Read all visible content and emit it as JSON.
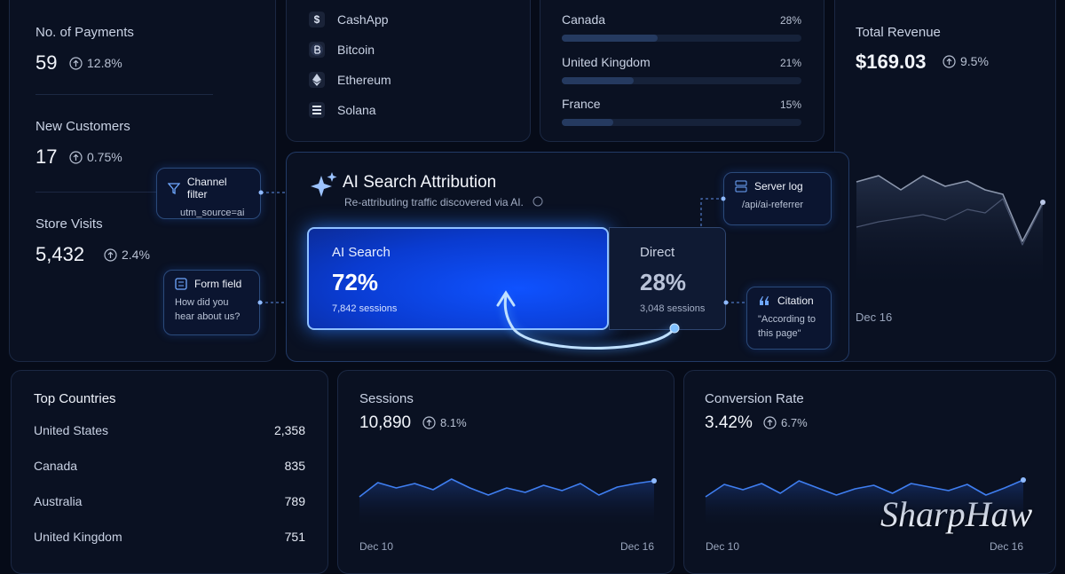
{
  "metrics": [
    {
      "label": "No. of Payments",
      "value": "59",
      "change": "12.8%"
    },
    {
      "label": "New Customers",
      "value": "17",
      "change": "0.75%"
    },
    {
      "label": "Store Visits",
      "value": "5,432",
      "change": "2.4%"
    }
  ],
  "payment_methods": [
    "CashApp",
    "Bitcoin",
    "Ethereum",
    "Solana"
  ],
  "country_shares": [
    {
      "name": "Canada",
      "share": 28,
      "label": "28%"
    },
    {
      "name": "United Kingdom",
      "share": 21,
      "label": "21%"
    },
    {
      "name": "France",
      "share": 15,
      "label": "15%"
    }
  ],
  "revenue": {
    "label": "Total Revenue",
    "value": "$169.03",
    "change": "9.5%",
    "date": "Dec 16"
  },
  "attribution": {
    "title": "AI Search Attribution",
    "subtitle": "Re-attributing traffic discovered via AI.",
    "ai": {
      "label": "AI Search",
      "share": 72,
      "share_label": "72%",
      "sessions": "7,842 sessions"
    },
    "direct": {
      "label": "Direct",
      "share": 28,
      "share_label": "28%",
      "sessions": "3,048 sessions"
    }
  },
  "callouts": [
    {
      "title": "Channel filter",
      "text": "utm_source=ai"
    },
    {
      "title": "Form field",
      "text": "How did you hear about us?"
    },
    {
      "title": "Server log",
      "text": "/api/ai-referrer"
    },
    {
      "title": "Citation",
      "text": "\"According to this page\""
    }
  ],
  "top_countries": {
    "title": "Top Countries",
    "rows": [
      [
        "United States",
        "2,358"
      ],
      [
        "Canada",
        "835"
      ],
      [
        "Australia",
        "789"
      ],
      [
        "United Kingdom",
        "751"
      ]
    ]
  },
  "sessions": {
    "label": "Sessions",
    "value": "10,890",
    "change": "8.1%",
    "start": "Dec 10",
    "end": "Dec 16"
  },
  "conversion": {
    "label": "Conversion Rate",
    "value": "3.42%",
    "change": "6.7%",
    "start": "Dec 10",
    "end": "Dec 16"
  },
  "watermark": "SharpHaw"
}
